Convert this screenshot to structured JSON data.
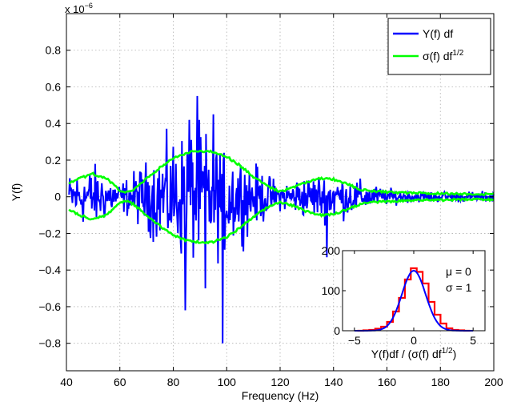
{
  "chart_data": [
    {
      "type": "line",
      "xlabel": "Frequency (Hz)",
      "ylabel": "Y(f)",
      "y_exponent_label": "x 10",
      "y_exponent_power": "−6",
      "xlim": [
        40,
        200
      ],
      "ylim": [
        -0.95,
        1.0
      ],
      "x_ticks": [
        40,
        60,
        80,
        100,
        120,
        140,
        160,
        180,
        200
      ],
      "y_ticks": [
        -0.8,
        -0.6,
        -0.4,
        -0.2,
        0,
        0.2,
        0.4,
        0.6,
        0.8
      ],
      "y_tick_labels": [
        "−0.8",
        "−0.6",
        "−0.4",
        "−0.2",
        "0",
        "0.2",
        "0.4",
        "0.6",
        "0.8"
      ],
      "grid": true,
      "legend_position": "top-right",
      "series": [
        {
          "name": "Y(f) df",
          "color": "#0000ff",
          "kind": "noise",
          "x": [
            40,
            50,
            60,
            70,
            80,
            90,
            100,
            110,
            120,
            130,
            140,
            150,
            160,
            170,
            180,
            190,
            200
          ],
          "envelope": [
            0.08,
            0.12,
            0.05,
            0.13,
            0.22,
            0.25,
            0.2,
            0.12,
            0.05,
            0.08,
            0.09,
            0.06,
            0.03,
            0.02,
            0.02,
            0.02,
            0.02
          ],
          "spikes": [
            {
              "x": 89,
              "y": 0.55
            },
            {
              "x": 84.5,
              "y": -0.62
            },
            {
              "x": 98.5,
              "y": -0.8
            },
            {
              "x": 137.5,
              "y": -0.33
            },
            {
              "x": 95,
              "y": 0.45
            },
            {
              "x": 86,
              "y": 0.42
            },
            {
              "x": 92,
              "y": -0.5
            }
          ]
        },
        {
          "name": "σ(f) df",
          "name_superscript": "1/2",
          "color": "#00ff00",
          "kind": "envelope",
          "x": [
            40,
            45,
            50,
            55,
            60,
            62,
            65,
            70,
            75,
            80,
            85,
            90,
            95,
            100,
            105,
            110,
            115,
            118,
            120,
            125,
            130,
            135,
            140,
            145,
            150,
            155,
            160,
            170,
            180,
            190,
            200
          ],
          "y": [
            0.065,
            0.1,
            0.125,
            0.1,
            0.035,
            0.02,
            0.04,
            0.1,
            0.16,
            0.21,
            0.24,
            0.25,
            0.245,
            0.22,
            0.17,
            0.11,
            0.06,
            0.04,
            0.03,
            0.05,
            0.08,
            0.1,
            0.095,
            0.07,
            0.04,
            0.03,
            0.025,
            0.02,
            0.018,
            0.015,
            0.015
          ]
        }
      ]
    },
    {
      "type": "line",
      "xlabel": "Y(f)df / (σ(f) df",
      "xlabel_superscript": "1/2",
      "xlabel_suffix": ")",
      "xlim": [
        -6,
        6
      ],
      "ylim": [
        0,
        200
      ],
      "x_ticks": [
        -5,
        0,
        5
      ],
      "x_tick_labels": [
        "−5",
        "0",
        "5"
      ],
      "y_ticks": [
        0,
        100,
        200
      ],
      "annotations": [
        "μ = 0",
        "σ = 1"
      ],
      "series": [
        {
          "name": "histogram",
          "color": "#ff0000",
          "kind": "steps",
          "x": [
            -4.5,
            -4,
            -3.5,
            -3,
            -2.5,
            -2,
            -1.5,
            -1,
            -0.5,
            0,
            0.5,
            1,
            1.5,
            2,
            2.5,
            3,
            3.5,
            4,
            4.5
          ],
          "y": [
            0,
            1,
            2,
            5,
            10,
            22,
            48,
            82,
            128,
            156,
            147,
            118,
            72,
            40,
            18,
            6,
            2,
            1,
            0
          ]
        },
        {
          "name": "gaussian fit",
          "color": "#0000ff",
          "kind": "gaussian",
          "mu": 0,
          "sigma": 1,
          "peak": 150
        }
      ]
    }
  ]
}
